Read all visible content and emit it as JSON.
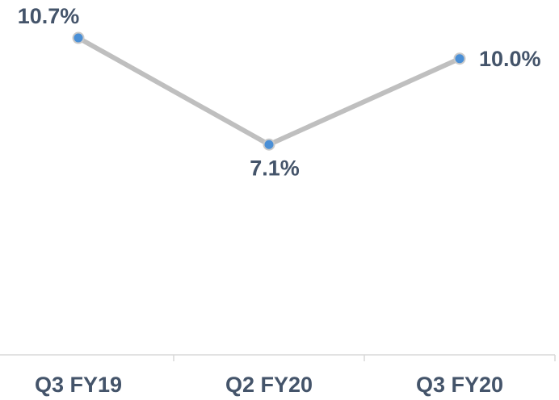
{
  "chart_data": {
    "type": "line",
    "categories": [
      "Q3 FY19",
      "Q2 FY20",
      "Q3 FY20"
    ],
    "values": [
      10.7,
      7.1,
      10.0
    ],
    "value_labels": [
      "10.7%",
      "7.1%",
      "10.0%"
    ],
    "color": "#bfbfbf",
    "marker_color": "#4a8fd6",
    "ylim": [
      0,
      11
    ]
  }
}
